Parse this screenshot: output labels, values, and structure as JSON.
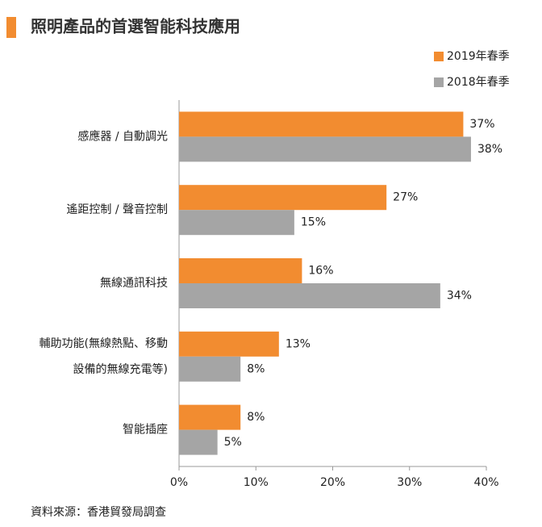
{
  "chart_data": {
    "type": "hbar",
    "title": "照明產品的首選智能科技應用",
    "categories": [
      [
        "感應器 / 自動調光"
      ],
      [
        "遙距控制 / 聲音控制"
      ],
      [
        "無線通訊科技"
      ],
      [
        "輔助功能(無線熱點、移動",
        "設備的無線充電等)"
      ],
      [
        "智能插座"
      ]
    ],
    "series": [
      {
        "name": "2019年春季",
        "color": "#f28c30",
        "values": [
          37,
          27,
          16,
          13,
          8
        ],
        "value_labels": [
          "37%",
          "27%",
          "16%",
          "13%",
          "8%"
        ]
      },
      {
        "name": "2018年春季",
        "color": "#a5a5a5",
        "values": [
          38,
          15,
          34,
          8,
          5
        ],
        "value_labels": [
          "38%",
          "15%",
          "34%",
          "8%",
          "5%"
        ]
      }
    ],
    "xlim": [
      0,
      40
    ],
    "xticks": [
      {
        "value": 0,
        "label": "0%"
      },
      {
        "value": 10,
        "label": "10%"
      },
      {
        "value": 20,
        "label": "20%"
      },
      {
        "value": 30,
        "label": "30%"
      },
      {
        "value": 40,
        "label": "40%"
      }
    ],
    "legend": "top-right",
    "source": "資料來源：香港貿發局調查"
  }
}
